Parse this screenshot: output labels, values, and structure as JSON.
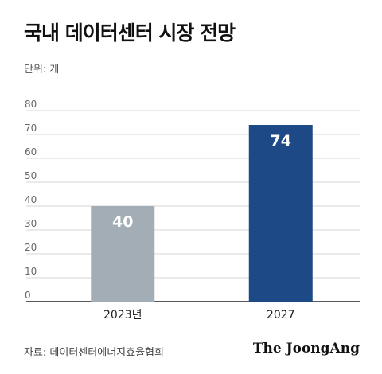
{
  "header": {
    "title": "국내 데이터센터 시장 전망",
    "unit": "단위: 개"
  },
  "footer": {
    "source": "자료: 데이터센터에너지효율협회",
    "brand": "The JoongAng"
  },
  "chart_data": {
    "type": "bar",
    "categories": [
      "2023년",
      "2027"
    ],
    "values": [
      40,
      74
    ],
    "data_labels": [
      "40",
      "74"
    ],
    "bar_colors": [
      "#a2adb5",
      "#1d4a87"
    ],
    "ylim": [
      0,
      80
    ],
    "yticks": [
      "0",
      "10",
      "20",
      "30",
      "40",
      "50",
      "60",
      "70",
      "80"
    ],
    "grid": true,
    "legend": "none"
  }
}
